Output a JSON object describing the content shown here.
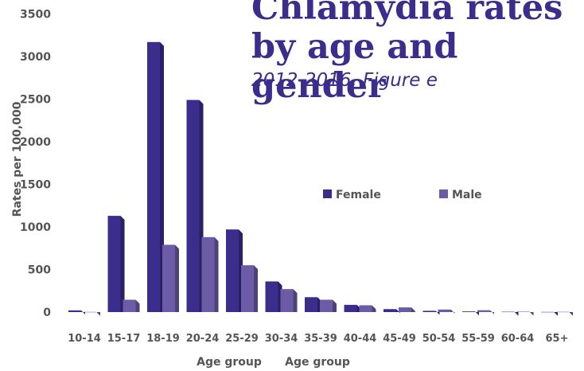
{
  "chart_data": {
    "type": "bar",
    "title": "Chlamydia rates\nby age and gender",
    "subtitle": "2012-2016, Figure e",
    "xlabel": "Age group",
    "xlabel_repeat": "Age group",
    "ylabel": "Rates per 100,000",
    "ylim": [
      0,
      3500
    ],
    "yticks": [
      0,
      500,
      1000,
      1500,
      2000,
      2500,
      3000,
      3500
    ],
    "grid": false,
    "legend_position": "middle-right",
    "categories": [
      "10-14",
      "15-17",
      "18-19",
      "20-24",
      "25-29",
      "30-34",
      "35-39",
      "40-44",
      "45-49",
      "50-54",
      "55-59",
      "60-64",
      "65+"
    ],
    "series": [
      {
        "name": "Female",
        "color": "#3a2d8c",
        "values": [
          20,
          1130,
          3170,
          2490,
          970,
          360,
          175,
          85,
          35,
          15,
          8,
          4,
          2
        ]
      },
      {
        "name": "Male",
        "color": "#6c5ca8",
        "values": [
          2,
          145,
          790,
          880,
          550,
          270,
          145,
          80,
          55,
          30,
          22,
          5,
          3
        ]
      }
    ]
  }
}
